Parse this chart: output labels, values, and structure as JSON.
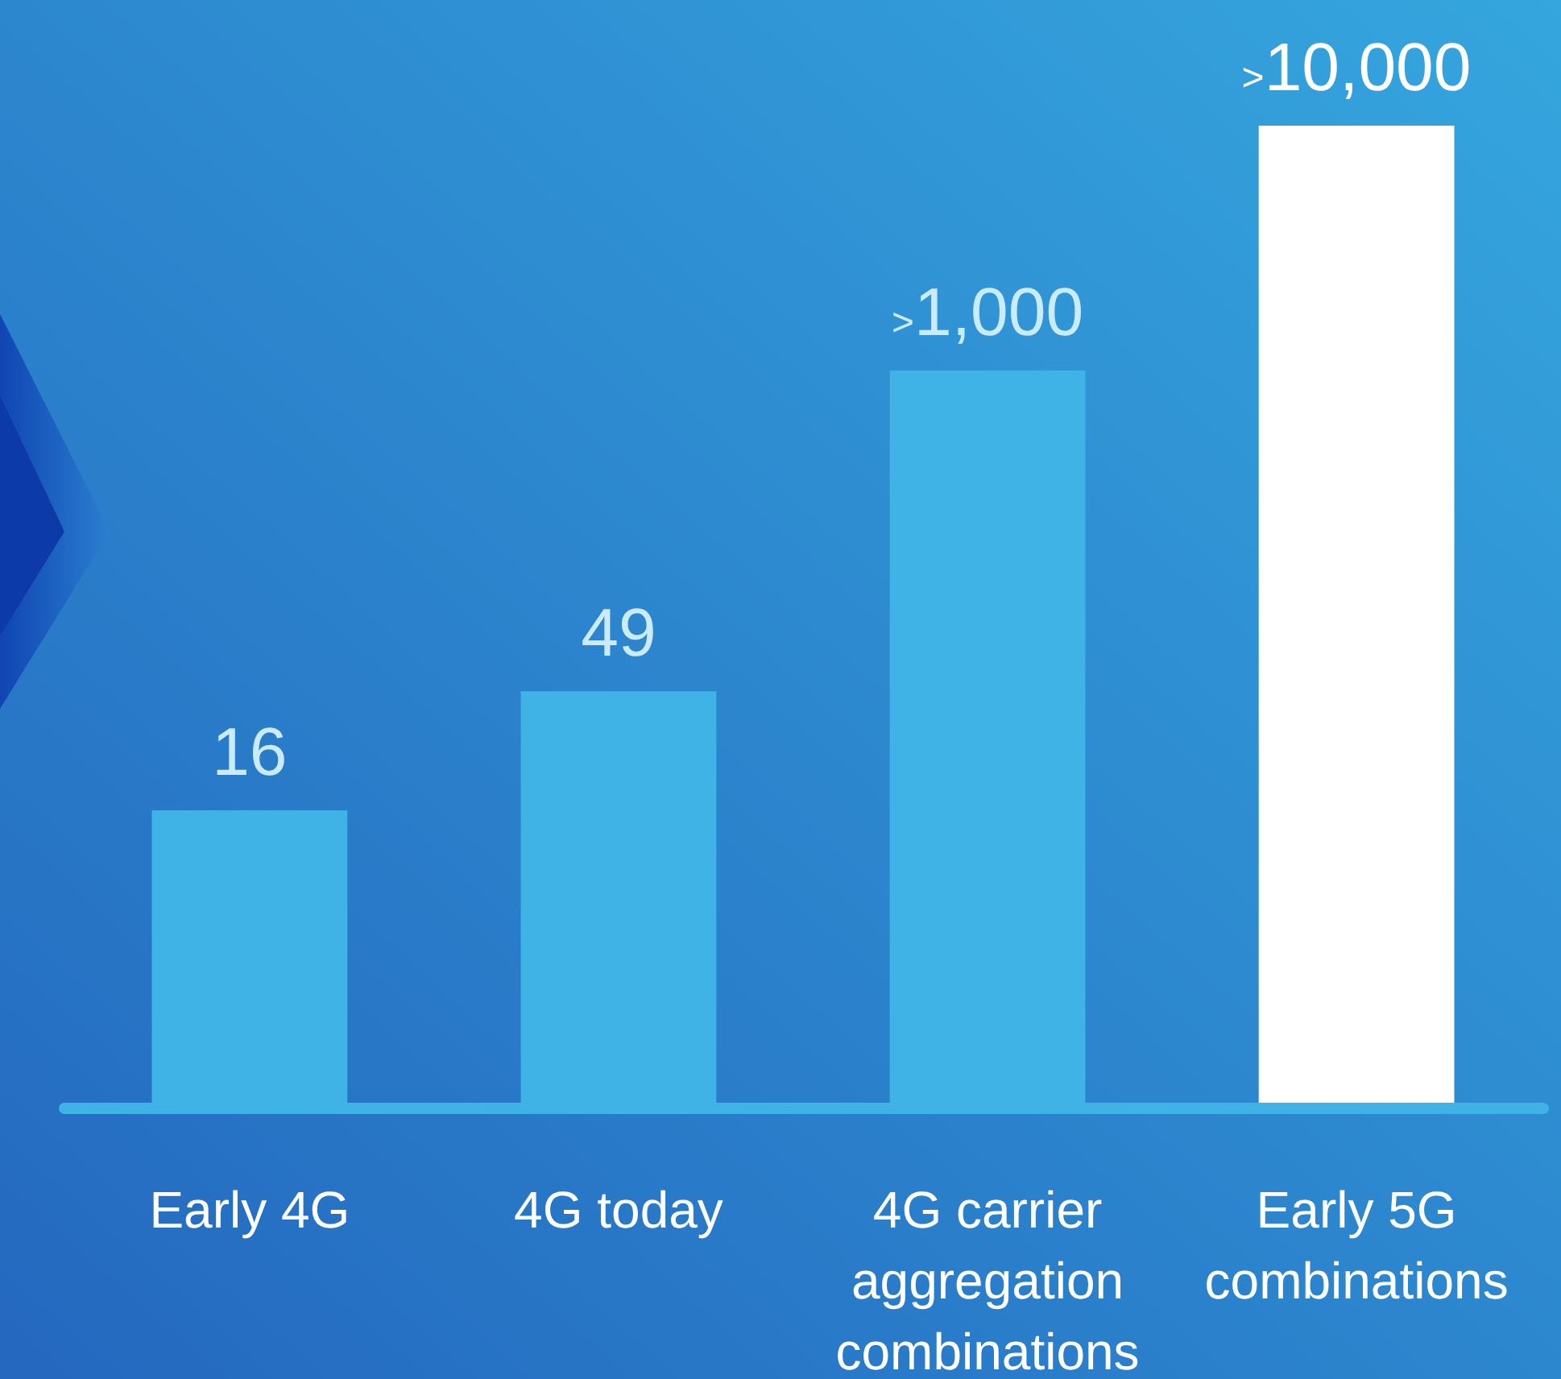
{
  "chart_data": {
    "type": "bar",
    "log": true,
    "ylim": [
      1,
      10000
    ],
    "categories": [
      "Early 4G",
      "4G today",
      "4G carrier aggregation combinations",
      "Early 5G combinations"
    ],
    "values": [
      16,
      49,
      1000,
      10000
    ],
    "colors": [
      "#3fb3e6",
      "#3fb3e6",
      "#3fb3e6",
      "#ffffff"
    ],
    "value_labels": [
      "16",
      "49",
      ">1,000",
      ">10,000"
    ]
  }
}
